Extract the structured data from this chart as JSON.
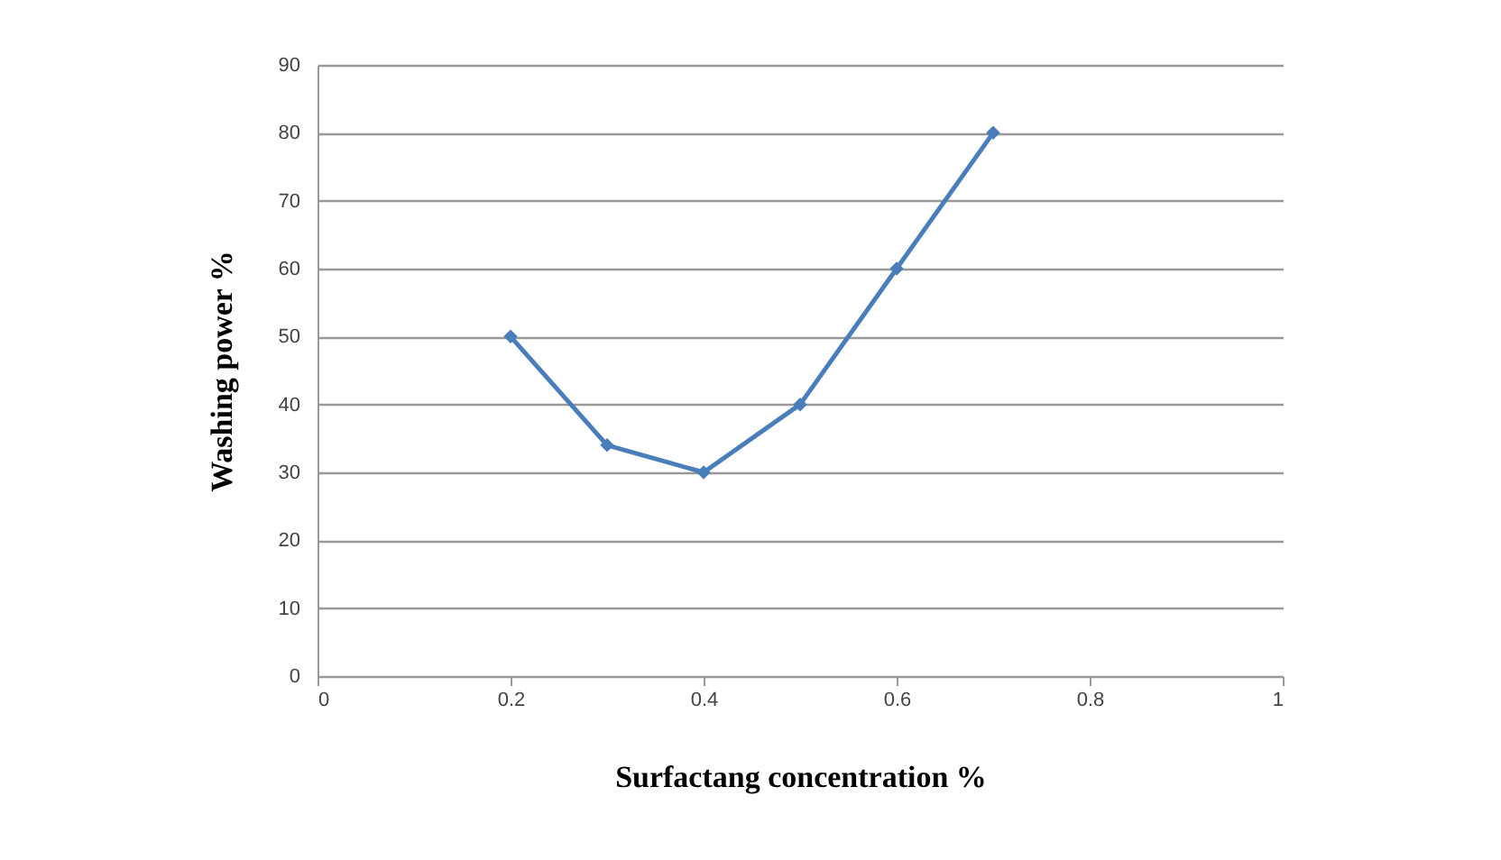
{
  "chart_data": {
    "type": "line",
    "xlabel": "Surfactang concentration %",
    "ylabel": "Washing power %",
    "x": [
      0.2,
      0.3,
      0.4,
      0.5,
      0.6,
      0.7
    ],
    "series": [
      {
        "color": "#4a7ebb",
        "values": [
          50,
          34,
          30,
          40,
          60,
          80
        ]
      }
    ],
    "xlim": [
      0,
      1
    ],
    "xticks": [
      0,
      0.2,
      0.4,
      0.6,
      0.8,
      1
    ],
    "ylim": [
      0,
      90
    ],
    "yticks": [
      0,
      10,
      20,
      30,
      40,
      50,
      60,
      70,
      80,
      90
    ],
    "grid": "y",
    "marker": "diamond",
    "line_style": "solid"
  }
}
